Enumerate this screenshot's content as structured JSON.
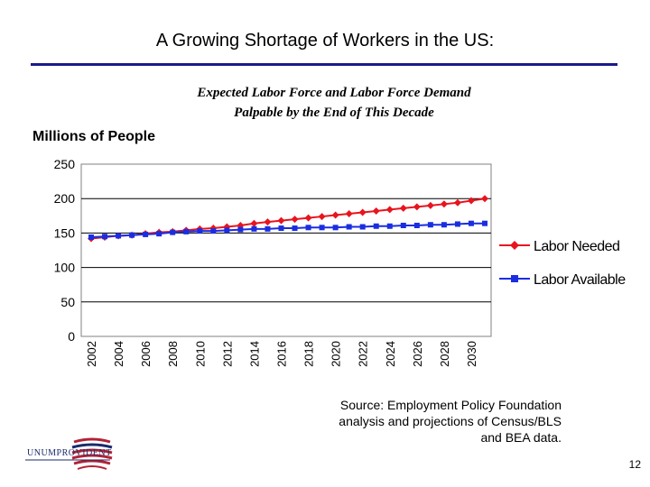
{
  "slide": {
    "title": "A Growing Shortage of Workers in the US:",
    "page_number": "12",
    "source_lines": [
      "Source:  Employment Policy Foundation",
      "analysis and projections of Census/BLS",
      "and BEA data."
    ],
    "logo_text": "UNUMPROVIDENT"
  },
  "chart_data": {
    "type": "line",
    "title_lines": [
      "Expected Labor Force and Labor Force Demand",
      "Palpable by the End of This Decade"
    ],
    "ylabel": "Millions of People",
    "xlabel": "",
    "ylim": [
      0,
      250
    ],
    "yticks": [
      0,
      50,
      100,
      150,
      200,
      250
    ],
    "x": [
      2002,
      2003,
      2004,
      2005,
      2006,
      2007,
      2008,
      2009,
      2010,
      2011,
      2012,
      2013,
      2014,
      2015,
      2016,
      2017,
      2018,
      2019,
      2020,
      2021,
      2022,
      2023,
      2024,
      2025,
      2026,
      2027,
      2028,
      2029,
      2030,
      2031
    ],
    "xtick_labels": [
      "2002",
      "2004",
      "2006",
      "2008",
      "2010",
      "2012",
      "2014",
      "2016",
      "2018",
      "2020",
      "2022",
      "2024",
      "2026",
      "2028",
      "2030"
    ],
    "grid": "horizontal",
    "legend_position": "right",
    "series": [
      {
        "name": "Labor Needed",
        "color": "#e8141e",
        "marker": "diamond",
        "values": [
          142,
          144,
          146,
          147,
          149,
          151,
          152,
          154,
          156,
          157,
          159,
          161,
          164,
          166,
          168,
          170,
          172,
          174,
          176,
          178,
          180,
          182,
          184,
          186,
          188,
          190,
          192,
          194,
          197,
          200
        ]
      },
      {
        "name": "Labor Available",
        "color": "#1a2ee0",
        "marker": "square",
        "values": [
          144,
          145,
          146,
          147,
          148,
          149,
          151,
          152,
          153,
          153,
          154,
          155,
          156,
          156,
          157,
          157,
          158,
          158,
          158,
          159,
          159,
          160,
          160,
          161,
          161,
          162,
          162,
          163,
          164,
          164
        ]
      }
    ]
  }
}
